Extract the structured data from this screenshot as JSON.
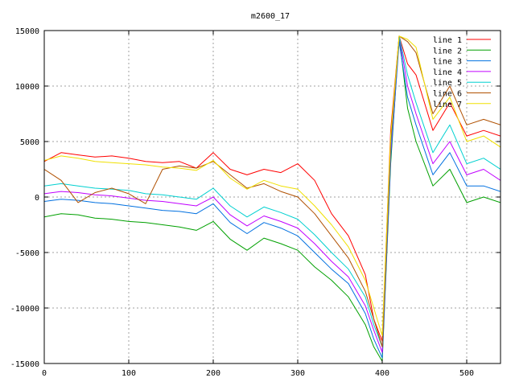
{
  "chart_data": {
    "type": "line",
    "title": "m2600_17",
    "xlabel": "",
    "ylabel": "",
    "xlim": [
      0,
      540
    ],
    "ylim": [
      -15000,
      15000
    ],
    "x_ticks": [
      0,
      100,
      200,
      300,
      400,
      500
    ],
    "y_ticks": [
      -15000,
      -10000,
      -5000,
      0,
      5000,
      10000,
      15000
    ],
    "x_tick_labels": [
      "0",
      "100",
      "200",
      "300",
      "400",
      "500"
    ],
    "y_tick_labels": [
      "-15000",
      "-10000",
      "-5000",
      "0",
      "5000",
      "10000",
      "15000"
    ],
    "grid": true,
    "legend_position": "top-right",
    "series": [
      {
        "name": "line 1",
        "color": "#ff0000",
        "x": [
          0,
          20,
          40,
          60,
          80,
          100,
          120,
          140,
          160,
          180,
          200,
          220,
          240,
          260,
          280,
          300,
          320,
          340,
          360,
          380,
          390,
          400,
          410,
          420,
          430,
          440,
          460,
          480,
          500,
          520,
          540
        ],
        "y": [
          3200,
          4000,
          3800,
          3600,
          3700,
          3500,
          3200,
          3100,
          3200,
          2600,
          4000,
          2500,
          2000,
          2500,
          2200,
          3000,
          1500,
          -1500,
          -3500,
          -7000,
          -11000,
          -13000,
          6000,
          14500,
          12000,
          11000,
          6000,
          8500,
          5500,
          6000,
          5500
        ]
      },
      {
        "name": "line 2",
        "color": "#00a000",
        "x": [
          0,
          20,
          40,
          60,
          80,
          100,
          120,
          140,
          160,
          180,
          200,
          220,
          240,
          260,
          280,
          300,
          320,
          340,
          360,
          380,
          390,
          400,
          410,
          420,
          430,
          440,
          460,
          480,
          500,
          520,
          540
        ],
        "y": [
          -1800,
          -1500,
          -1600,
          -1900,
          -2000,
          -2200,
          -2300,
          -2500,
          -2700,
          -3000,
          -2200,
          -3800,
          -4800,
          -3700,
          -4200,
          -4800,
          -6300,
          -7500,
          -9000,
          -11500,
          -13500,
          -14800,
          3000,
          14500,
          8000,
          5000,
          1000,
          2500,
          -500,
          0,
          -500
        ]
      },
      {
        "name": "line 3",
        "color": "#0070e0",
        "x": [
          0,
          20,
          40,
          60,
          80,
          100,
          120,
          140,
          160,
          180,
          200,
          220,
          240,
          260,
          280,
          300,
          320,
          340,
          360,
          380,
          390,
          400,
          410,
          420,
          430,
          440,
          460,
          480,
          500,
          520,
          540
        ],
        "y": [
          -400,
          -200,
          -300,
          -500,
          -600,
          -800,
          -1000,
          -1200,
          -1300,
          -1500,
          -600,
          -2300,
          -3300,
          -2300,
          -2800,
          -3500,
          -5000,
          -6500,
          -7800,
          -10500,
          -12800,
          -14500,
          3500,
          14000,
          9000,
          6500,
          2000,
          4000,
          1000,
          1000,
          500
        ]
      },
      {
        "name": "line 4",
        "color": "#c000ff",
        "x": [
          0,
          20,
          40,
          60,
          80,
          100,
          120,
          140,
          160,
          180,
          200,
          220,
          240,
          260,
          280,
          300,
          320,
          340,
          360,
          380,
          390,
          400,
          410,
          420,
          430,
          440,
          460,
          480,
          500,
          520,
          540
        ],
        "y": [
          300,
          500,
          400,
          200,
          100,
          -100,
          -300,
          -400,
          -600,
          -800,
          0,
          -1600,
          -2600,
          -1700,
          -2200,
          -2800,
          -4200,
          -5800,
          -7200,
          -9800,
          -12000,
          -14000,
          4000,
          14500,
          10000,
          7500,
          3000,
          5000,
          2000,
          2500,
          1500
        ]
      },
      {
        "name": "line 5",
        "color": "#00d0d0",
        "x": [
          0,
          20,
          40,
          60,
          80,
          100,
          120,
          140,
          160,
          180,
          200,
          220,
          240,
          260,
          280,
          300,
          320,
          340,
          360,
          380,
          390,
          400,
          410,
          420,
          430,
          440,
          460,
          480,
          500,
          520,
          540
        ],
        "y": [
          1000,
          1200,
          1000,
          800,
          700,
          600,
          300,
          200,
          0,
          -200,
          800,
          -800,
          -1800,
          -900,
          -1400,
          -2000,
          -3400,
          -5000,
          -6500,
          -9000,
          -11500,
          -13500,
          4500,
          14500,
          11000,
          8500,
          4000,
          6500,
          3000,
          3500,
          2500
        ]
      },
      {
        "name": "line 6",
        "color": "#b05000",
        "x": [
          0,
          20,
          40,
          60,
          80,
          100,
          120,
          140,
          160,
          180,
          200,
          220,
          240,
          260,
          280,
          300,
          320,
          340,
          360,
          380,
          390,
          400,
          410,
          420,
          430,
          440,
          460,
          480,
          500,
          520,
          540
        ],
        "y": [
          2500,
          1500,
          -500,
          400,
          800,
          300,
          -600,
          2500,
          2800,
          2600,
          3200,
          2000,
          800,
          1200,
          500,
          0,
          -1500,
          -3500,
          -5500,
          -8500,
          -11000,
          -13500,
          5000,
          14500,
          14000,
          13000,
          7500,
          10000,
          6500,
          7000,
          6500
        ]
      },
      {
        "name": "line 7",
        "color": "#f0e000",
        "x": [
          0,
          20,
          40,
          60,
          80,
          100,
          120,
          140,
          160,
          180,
          200,
          220,
          240,
          260,
          280,
          300,
          320,
          340,
          360,
          380,
          390,
          400,
          410,
          420,
          430,
          440,
          460,
          480,
          500,
          520,
          540
        ],
        "y": [
          3300,
          3700,
          3500,
          3200,
          3100,
          3000,
          2900,
          2700,
          2600,
          2400,
          3300,
          1700,
          700,
          1500,
          1000,
          700,
          -800,
          -2500,
          -4500,
          -7500,
          -10000,
          -12500,
          5500,
          14500,
          14200,
          13500,
          7000,
          9000,
          5000,
          5500,
          4500
        ]
      }
    ]
  }
}
